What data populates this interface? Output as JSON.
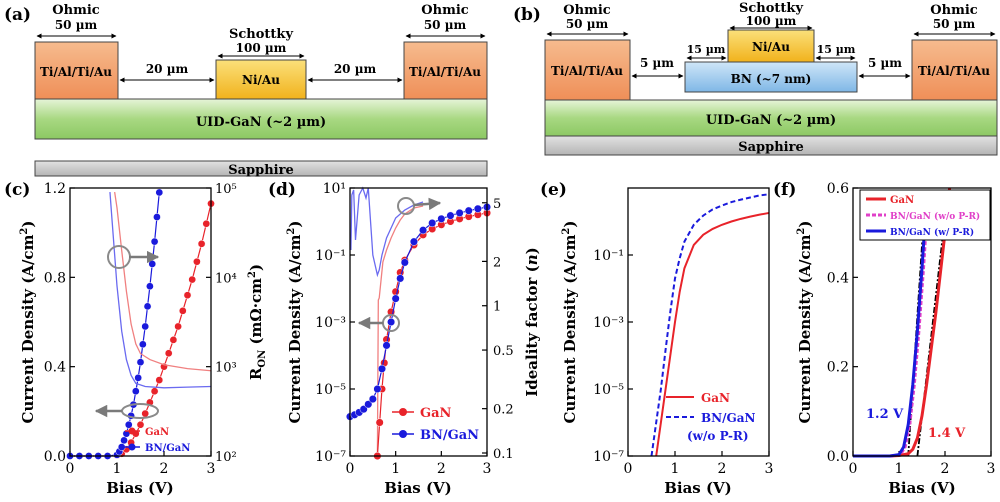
{
  "panel_a": {
    "letter": "(a)",
    "ohmic_label": "Ohmic",
    "ohmic_width": "50 µm",
    "ohmic_metal": "Ti/Al/Ti/Au",
    "schottky_label": "Schottky",
    "schottky_width": "100 µm",
    "schottky_metal": "Ni/Au",
    "gap": "20 µm",
    "channel": "UID-GaN (~2 µm)",
    "substrate": "Sapphire"
  },
  "panel_b": {
    "letter": "(b)",
    "ohmic_label": "Ohmic",
    "ohmic_width": "50 µm",
    "ohmic_metal": "Ti/Al/Ti/Au",
    "schottky_label": "Schottky",
    "schottky_width": "100 µm",
    "schottky_metal": "Ni/Au",
    "overlap": "15 µm",
    "gap": "5 µm",
    "bn_layer": "BN (~7 nm)",
    "channel": "UID-GaN (~2 µm)",
    "substrate": "Sapphire"
  },
  "chart_data": [
    {
      "panel": "(c)",
      "type": "line",
      "xlabel": "Bias (V)",
      "ylabel": "Current Density (A/cm²)",
      "y2label": "R_on (mΩ·cm²)",
      "xlim": [
        0,
        3
      ],
      "ylim": [
        0,
        1.2
      ],
      "y2lim": [
        100,
        100000
      ],
      "y2scale": "log",
      "xticks": [
        "0",
        "1",
        "2",
        "3"
      ],
      "yticks": [
        "0.0",
        "0.4",
        "0.8",
        "1.2"
      ],
      "y2ticks": [
        "10²",
        "10³",
        "10⁴",
        "10⁵"
      ],
      "legend": [
        "GaN",
        "BN/GaN"
      ],
      "series": [
        {
          "name": "GaN",
          "axis": "left",
          "color": "#e8232a",
          "x": [
            0.0,
            0.2,
            0.4,
            0.6,
            0.8,
            1.0,
            1.1,
            1.2,
            1.3,
            1.4,
            1.5,
            1.6,
            1.7,
            1.8,
            1.9,
            2.0,
            2.1,
            2.2,
            2.3,
            2.4,
            2.5,
            2.6,
            2.7,
            2.8,
            2.9,
            3.0
          ],
          "y": [
            0,
            0,
            0,
            0,
            0,
            0.003,
            0.01,
            0.03,
            0.06,
            0.1,
            0.14,
            0.19,
            0.24,
            0.29,
            0.34,
            0.4,
            0.46,
            0.52,
            0.58,
            0.65,
            0.72,
            0.79,
            0.87,
            0.95,
            1.04,
            1.13
          ]
        },
        {
          "name": "BN/GaN",
          "axis": "left",
          "color": "#1a1adc",
          "x": [
            0.0,
            0.2,
            0.4,
            0.6,
            0.8,
            1.0,
            1.05,
            1.1,
            1.15,
            1.2,
            1.25,
            1.3,
            1.35,
            1.4,
            1.45,
            1.5,
            1.55,
            1.6,
            1.65,
            1.7,
            1.75,
            1.8,
            1.85,
            1.9
          ],
          "y": [
            0,
            0,
            0,
            0,
            0,
            0.005,
            0.02,
            0.04,
            0.07,
            0.1,
            0.14,
            0.18,
            0.23,
            0.29,
            0.35,
            0.42,
            0.5,
            0.58,
            0.67,
            0.76,
            0.86,
            0.96,
            1.07,
            1.18
          ]
        },
        {
          "name": "GaN R_on",
          "axis": "right",
          "color": "#f08080",
          "x": [
            0.95,
            1.0,
            1.1,
            1.2,
            1.3,
            1.4,
            1.5,
            1.7,
            2.0,
            2.5,
            3.0
          ],
          "y": [
            90000,
            60000,
            20000,
            7000,
            3000,
            1800,
            1400,
            1200,
            1050,
            950,
            900
          ]
        },
        {
          "name": "BN/GaN R_on",
          "axis": "right",
          "color": "#6a6af0",
          "x": [
            0.85,
            0.9,
            1.0,
            1.1,
            1.2,
            1.3,
            1.4,
            1.6,
            2.0,
            2.5,
            3.0
          ],
          "y": [
            90000,
            40000,
            8000,
            2500,
            1200,
            800,
            650,
            600,
            580,
            590,
            600
          ]
        }
      ]
    },
    {
      "panel": "(d)",
      "type": "line",
      "xlabel": "Bias (V)",
      "ylabel": "Current Density (A/cm²)",
      "y2label": "Ideality factor (n)",
      "xlim": [
        0,
        3
      ],
      "ylim": [
        1e-07,
        10
      ],
      "yscale": "log",
      "xticks": [
        "0",
        "1",
        "2",
        "3"
      ],
      "yticks": [
        "10⁻⁷",
        "10⁻⁵",
        "10⁻³",
        "10⁻¹",
        "10¹"
      ],
      "y2ticks": [
        "0.1",
        "0.2",
        "0.5",
        "1",
        "2",
        "5"
      ],
      "legend": [
        "GaN",
        "BN/GaN"
      ],
      "series": [
        {
          "name": "GaN",
          "color": "#e8232a",
          "x": [
            0.6,
            0.65,
            0.7,
            0.75,
            0.8,
            0.9,
            1.0,
            1.1,
            1.2,
            1.4,
            1.6,
            1.8,
            2.0,
            2.2,
            2.4,
            2.6,
            2.8,
            3.0
          ],
          "y": [
            1e-07,
            1e-06,
            1e-05,
            6e-05,
            0.0003,
            0.002,
            0.008,
            0.03,
            0.07,
            0.2,
            0.4,
            0.6,
            0.8,
            1.0,
            1.2,
            1.4,
            1.6,
            1.8
          ]
        },
        {
          "name": "BN/GaN",
          "color": "#1a1adc",
          "x": [
            0.0,
            0.1,
            0.2,
            0.3,
            0.4,
            0.5,
            0.6,
            0.7,
            0.8,
            0.9,
            1.0,
            1.1,
            1.2,
            1.4,
            1.6,
            1.8,
            2.0,
            2.2,
            2.4,
            2.6,
            2.8,
            3.0
          ],
          "y": [
            1.5e-06,
            1.7e-06,
            2e-06,
            2.5e-06,
            3.5e-06,
            5e-06,
            1e-05,
            4e-05,
            0.0002,
            0.001,
            0.005,
            0.02,
            0.06,
            0.25,
            0.55,
            0.9,
            1.2,
            1.5,
            1.8,
            2.1,
            2.4,
            2.7
          ]
        }
      ]
    },
    {
      "panel": "(e)",
      "type": "line",
      "xlabel": "Bias (V)",
      "ylabel": "Current Density (A/cm²)",
      "xlim": [
        0,
        3
      ],
      "ylim": [
        1e-07,
        10
      ],
      "yscale": "log",
      "xticks": [
        "0",
        "1",
        "2",
        "3"
      ],
      "yticks": [
        "10⁻⁷",
        "10⁻⁵",
        "10⁻³",
        "10⁻¹"
      ],
      "legend": [
        "GaN",
        "BN/GaN (w/o P-R)"
      ],
      "series": [
        {
          "name": "GaN",
          "color": "#e8232a",
          "dash": "solid",
          "x": [
            0.6,
            0.7,
            0.8,
            0.9,
            1.0,
            1.1,
            1.2,
            1.4,
            1.6,
            1.8,
            2.0,
            2.2,
            2.4,
            2.6,
            2.8,
            3.0
          ],
          "y": [
            1e-07,
            1e-06,
            1e-05,
            0.0001,
            0.001,
            0.008,
            0.04,
            0.2,
            0.4,
            0.6,
            0.8,
            1.0,
            1.2,
            1.4,
            1.6,
            1.8
          ]
        },
        {
          "name": "BN/GaN (w/o P-R)",
          "color": "#1a1adc",
          "dash": "dashed",
          "x": [
            0.5,
            0.6,
            0.7,
            0.8,
            0.9,
            1.0,
            1.1,
            1.2,
            1.4,
            1.6,
            1.8,
            2.0,
            2.2,
            2.4,
            2.6,
            2.8,
            3.0
          ],
          "y": [
            1e-07,
            1e-06,
            1e-05,
            0.00015,
            0.002,
            0.02,
            0.08,
            0.25,
            0.8,
            1.5,
            2.3,
            3.0,
            3.8,
            4.5,
            5.2,
            6.0,
            6.5
          ]
        }
      ]
    },
    {
      "panel": "(f)",
      "type": "line",
      "xlabel": "Bias (V)",
      "ylabel": "Current Density (A/cm²)",
      "xlim": [
        0,
        3
      ],
      "ylim": [
        0,
        0.6
      ],
      "xticks": [
        "0",
        "1",
        "2",
        "3"
      ],
      "yticks": [
        "0.0",
        "0.2",
        "0.4",
        "0.6"
      ],
      "legend": [
        "GaN",
        "BN/GaN (w/o P-R)",
        "BN/GaN (w/ P-R)"
      ],
      "annotations": [
        "1.2 V",
        "1.4 V"
      ],
      "series": [
        {
          "name": "GaN",
          "color": "#e8232a",
          "x": [
            0.0,
            0.8,
            1.0,
            1.2,
            1.3,
            1.4,
            1.5,
            1.6,
            1.7,
            1.8,
            1.9,
            2.0,
            2.1
          ],
          "y": [
            0,
            0,
            0.001,
            0.005,
            0.015,
            0.04,
            0.09,
            0.16,
            0.24,
            0.32,
            0.41,
            0.5,
            0.6
          ]
        },
        {
          "name": "BN/GaN (w/o P-R)",
          "color": "#e040c8",
          "x": [
            0.0,
            0.8,
            1.0,
            1.1,
            1.2,
            1.3,
            1.4,
            1.5,
            1.6
          ],
          "y": [
            0,
            0,
            0.003,
            0.02,
            0.07,
            0.16,
            0.28,
            0.42,
            0.58
          ]
        },
        {
          "name": "BN/GaN (w/ P-R)",
          "color": "#1a1adc",
          "x": [
            0.0,
            0.8,
            1.0,
            1.1,
            1.2,
            1.3,
            1.4,
            1.5,
            1.6
          ],
          "y": [
            0,
            0,
            0.003,
            0.02,
            0.07,
            0.16,
            0.28,
            0.42,
            0.58
          ]
        }
      ]
    }
  ],
  "labels": {
    "c_letter": "(c)",
    "d_letter": "(d)",
    "e_letter": "(e)",
    "f_letter": "(f)",
    "bias": "Bias (V)",
    "cd": "Current Density (A/cm",
    "cd_tail": ")",
    "ron": "R",
    "ron_sub": "ON",
    "ron_unit": " (mΩ·cm",
    "ideality": "Ideality factor (",
    "ideality_n": "n",
    "ideality_tail": ")",
    "gan": "GaN",
    "bngan": "BN/GaN",
    "bngan_wo": "BN/GaN",
    "wo_pr": "(w/o P-R)",
    "bngan_wo_f": "BN/GaN (w/o P-R)",
    "bngan_w_f": "BN/GaN (w/ P-R)",
    "v12": "1.2 V",
    "v14": "1.4 V",
    "sq": "2"
  },
  "colors": {
    "ohmic": "#f2a470",
    "schottky": "#f7c531",
    "bn": "#9cc8ec",
    "gan": "#9ed37a",
    "sapphire": "#c9c9c9",
    "red": "#e8232a",
    "blue": "#1a1adc",
    "pink": "#e040c8"
  }
}
